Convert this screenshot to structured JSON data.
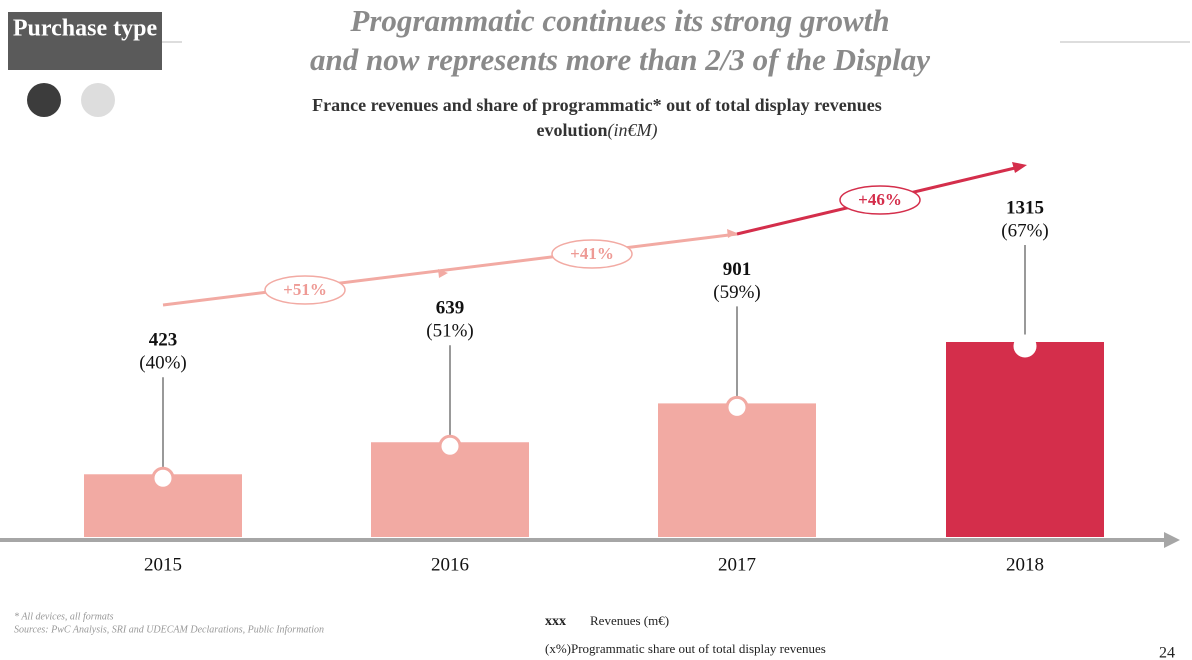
{
  "header": {
    "section": "Purchase type",
    "title": [
      "Programmatic continues its strong growth",
      "and now represents more than 2/3 of the Display"
    ]
  },
  "chart_data": {
    "type": "bar",
    "subtitle": [
      "France revenues and share of programmatic*  out of total display revenues",
      "evolution"
    ],
    "unit": "(in€M)",
    "categories": [
      "2015",
      "2016",
      "2017",
      "2018"
    ],
    "values": [
      423,
      639,
      901,
      1315
    ],
    "colors": [
      "#f2aaa3",
      "#f2aaa3",
      "#f2aaa3",
      "#d42e4b"
    ],
    "share": {
      "values": [
        40,
        51,
        59,
        67
      ],
      "value_labels": [
        "(40%)",
        "(51%)",
        "(59%)",
        "(67%)"
      ]
    },
    "growth": [
      "+51%",
      "+41%",
      "+46%"
    ],
    "legend": {
      "key": "xxx",
      "revenues": "Revenues (m€)",
      "share": "(x%)Programmatic  share out of  total display  revenues"
    }
  },
  "footnotes": [
    "* All devices, all formats",
    "Sources: PwC Analysis, SRI and UDECAM Declarations, Public Information"
  ],
  "page_number": "24"
}
